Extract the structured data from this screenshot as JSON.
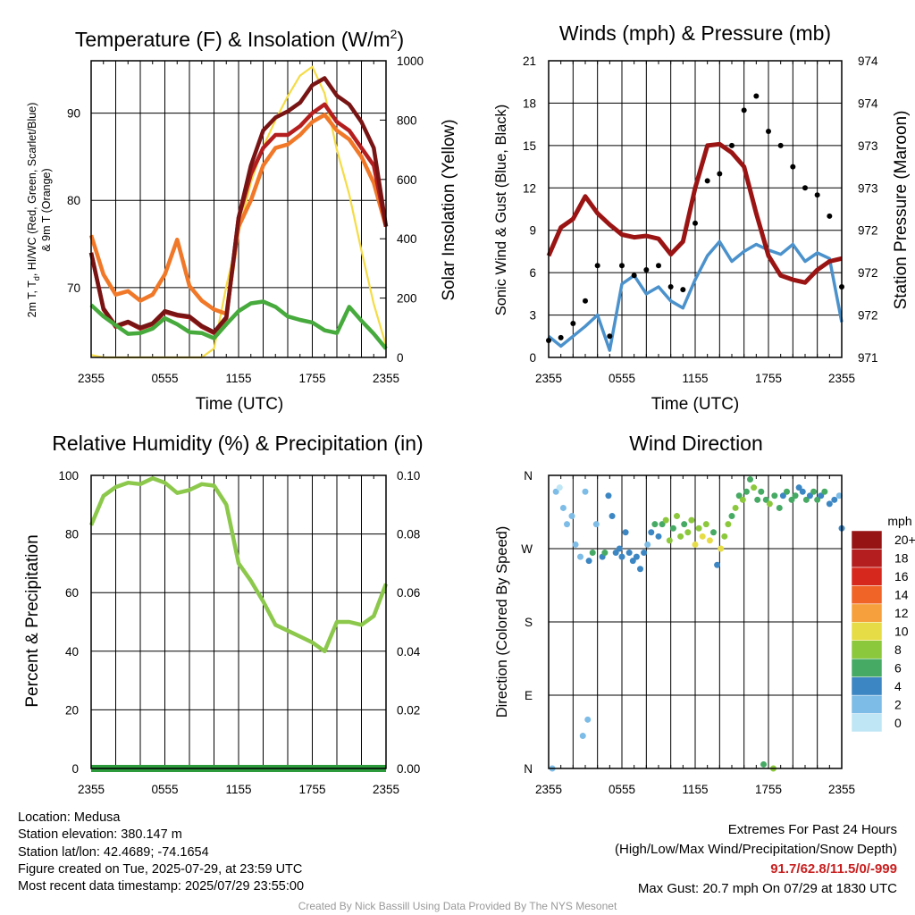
{
  "charts": {
    "temp": {
      "title": "Temperature (F) & Insolation (W/m",
      "title_sup": "2",
      "title_end": ")",
      "ylabel_left_l1": "2m T, T",
      "ylabel_left_sub": "d",
      "ylabel_left_l1b": ", HI/WC (Red, Green, Scarlet/Blue)",
      "ylabel_left_l2": "& 9m T (Orange)",
      "ylabel_right": "Solar Insolation (Yellow)",
      "xlabel": "Time (UTC)"
    },
    "wind": {
      "title": "Winds (mph) & Pressure (mb)",
      "ylabel_left": "Sonic Wind & Gust (Blue, Black)",
      "ylabel_right": "Station Pressure (Maroon)",
      "xlabel": "Time (UTC)"
    },
    "rh": {
      "title": "Relative Humidity (%) & Precipitation (in)",
      "ylabel_left": "Percent & Precipitation"
    },
    "dir": {
      "title": "Wind Direction",
      "ylabel_left": "Direction (Colored By Speed)",
      "legend_title": "mph"
    }
  },
  "footer": {
    "location": "Location: Medusa",
    "elevation": "Station elevation: 380.147 m",
    "latlon": "Station lat/lon: 42.4689; -74.1654",
    "created": "Figure created on Tue, 2025-07-29, at 23:59 UTC",
    "recent": "Most recent data timestamp: 2025/07/29 23:55:00",
    "extremes_title": "Extremes For Past 24 Hours",
    "extremes_sub": "(High/Low/Max Wind/Precipitation/Snow Depth)",
    "extremes_values": "91.7/62.8/11.5/0/-999",
    "max_gust": "Max Gust: 20.7 mph On 07/29 at 1830 UTC",
    "credit": "Created By Nick Bassill Using Data Provided By The NYS Mesonet"
  },
  "chart_data": [
    {
      "type": "line",
      "title": "Temperature (F) & Insolation (W/m2)",
      "xlabel": "Time (UTC)",
      "x_ticks": [
        "2355",
        "0555",
        "1155",
        "1755",
        "2355"
      ],
      "ylim": [
        62,
        96
      ],
      "y_ticks": [
        70,
        80,
        90
      ],
      "y2lim": [
        0,
        1000
      ],
      "y2_ticks": [
        0,
        200,
        400,
        600,
        800,
        1000
      ],
      "x": [
        0,
        1,
        2,
        3,
        4,
        5,
        6,
        7,
        8,
        9,
        10,
        11,
        12,
        13,
        14,
        15,
        16,
        17,
        18,
        19,
        20,
        21,
        22,
        23,
        24
      ],
      "series": [
        {
          "name": "2m T",
          "color": "#b41e1e",
          "axis": "left",
          "values": [
            74,
            67.5,
            65.5,
            66,
            65.3,
            65.8,
            67.2,
            66.8,
            66.6,
            65.5,
            64.8,
            66.5,
            78,
            83,
            86,
            87.5,
            87.5,
            88.5,
            90,
            91,
            89,
            88,
            86,
            84,
            77
          ]
        },
        {
          "name": "HI/WC",
          "color": "#781414",
          "axis": "left",
          "values": [
            74,
            67.6,
            65.6,
            66.1,
            65.4,
            65.9,
            67.3,
            66.9,
            66.7,
            65.6,
            64.9,
            66.6,
            78,
            84,
            88,
            89.5,
            90.2,
            91.2,
            93.2,
            94,
            92,
            91,
            89,
            86,
            77
          ]
        },
        {
          "name": "9m T",
          "color": "#f07828",
          "axis": "left",
          "values": [
            76,
            71.5,
            69.2,
            69.6,
            68.5,
            69.2,
            71.5,
            75.5,
            70.2,
            68.5,
            67.5,
            67,
            77,
            80,
            84,
            86,
            86.4,
            87.5,
            89,
            89.8,
            88,
            87,
            85,
            82,
            77
          ]
        },
        {
          "name": "Td",
          "color": "#46aa3c",
          "axis": "left",
          "values": [
            68,
            66.7,
            65.7,
            64.7,
            64.8,
            65.3,
            66.5,
            65.8,
            64.9,
            64.8,
            64.2,
            65.8,
            67.3,
            68.2,
            68.4,
            67.8,
            66.7,
            66.3,
            66,
            65.1,
            64.8,
            67.8,
            66.2,
            64.7,
            63
          ]
        },
        {
          "name": "Solar Insolation",
          "color": "#f5dc46",
          "axis": "right",
          "values": [
            8,
            0,
            0,
            0,
            0,
            0,
            0,
            0,
            0,
            0,
            30,
            240,
            420,
            590,
            710,
            800,
            880,
            950,
            980,
            890,
            700,
            550,
            360,
            180,
            40
          ]
        }
      ]
    },
    {
      "type": "line",
      "title": "Winds (mph) & Pressure (mb)",
      "xlabel": "Time (UTC)",
      "x_ticks": [
        "2355",
        "0555",
        "1155",
        "1755",
        "2355"
      ],
      "ylim": [
        0,
        21
      ],
      "y_ticks": [
        0,
        3,
        6,
        9,
        12,
        15,
        18,
        21
      ],
      "y2_ticks": [
        "971",
        "972",
        "972",
        "972",
        "973",
        "973",
        "974",
        "974"
      ],
      "x": [
        0,
        1,
        2,
        3,
        4,
        5,
        6,
        7,
        8,
        9,
        10,
        11,
        12,
        13,
        14,
        15,
        16,
        17,
        18,
        19,
        20,
        21,
        22,
        23,
        24
      ],
      "series": [
        {
          "name": "Sonic Wind",
          "color": "#4b92cc",
          "axis": "left",
          "values": [
            1.5,
            0.8,
            1.5,
            2.2,
            3,
            0.5,
            5.2,
            5.8,
            4.5,
            5,
            4,
            3.5,
            5.5,
            7.2,
            8.2,
            6.8,
            7.5,
            8,
            7.6,
            7.3,
            8,
            6.8,
            7.4,
            7,
            2.5
          ]
        },
        {
          "name": "Gust",
          "color": "#000000",
          "axis": "left",
          "values": [
            1.2,
            1.4,
            2.4,
            4,
            6.5,
            1.5,
            6.5,
            5.8,
            6.2,
            6.5,
            5,
            4.8,
            9.5,
            12.5,
            13,
            15,
            17.5,
            18.5,
            16,
            15,
            13.5,
            12,
            11.5,
            10,
            5
          ]
        },
        {
          "name": "Station Pressure",
          "color": "#9b1414",
          "axis": "left",
          "values": [
            7.2,
            9.2,
            9.8,
            11.4,
            10.2,
            9.4,
            8.7,
            8.5,
            8.6,
            8.4,
            7.3,
            8.2,
            12,
            15,
            15.1,
            14.5,
            13.5,
            10.2,
            7.2,
            5.8,
            5.5,
            5.3,
            6.2,
            6.8,
            7
          ]
        }
      ]
    },
    {
      "type": "line",
      "title": "Relative Humidity (%) & Precipitation (in)",
      "ylabel": "Percent & Precipitation",
      "x_ticks": [
        "2355",
        "0555",
        "1155",
        "1755",
        "2355"
      ],
      "ylim": [
        0,
        100
      ],
      "y_ticks": [
        0,
        20,
        40,
        60,
        80,
        100
      ],
      "y2lim": [
        0,
        0.1
      ],
      "y2_ticks": [
        "0.00",
        "0.02",
        "0.04",
        "0.06",
        "0.08",
        "0.10"
      ],
      "x": [
        0,
        1,
        2,
        3,
        4,
        5,
        6,
        7,
        8,
        9,
        10,
        11,
        12,
        13,
        14,
        15,
        16,
        17,
        18,
        19,
        20,
        21,
        22,
        23,
        24
      ],
      "series": [
        {
          "name": "Relative Humidity",
          "color": "#8cc84b",
          "axis": "left",
          "values": [
            83,
            93,
            96,
            97.5,
            97,
            99,
            97.5,
            94,
            95,
            97,
            96.5,
            90,
            70,
            64,
            57,
            49,
            47,
            45,
            43,
            40,
            50,
            50,
            49,
            52,
            63
          ]
        },
        {
          "name": "Precipitation",
          "color": "#2d9a3c",
          "axis": "right",
          "values": [
            0,
            0,
            0,
            0,
            0,
            0,
            0,
            0,
            0,
            0,
            0,
            0,
            0,
            0,
            0,
            0,
            0,
            0,
            0,
            0,
            0,
            0,
            0,
            0,
            0
          ]
        }
      ]
    },
    {
      "type": "scatter",
      "title": "Wind Direction",
      "ylabel": "Direction (Colored By Speed)",
      "x_ticks": [
        "2355",
        "0555",
        "1155",
        "1755",
        "2355"
      ],
      "y_ticks": [
        "N",
        "E",
        "S",
        "W",
        "N"
      ],
      "ylim": [
        0,
        360
      ],
      "legend": {
        "title": "mph",
        "labels": [
          "0",
          "2",
          "4",
          "6",
          "8",
          "10",
          "12",
          "14",
          "16",
          "18",
          "20+"
        ],
        "colors": [
          "#bfe6f5",
          "#7dbce6",
          "#3c87c3",
          "#46aa64",
          "#8cc83c",
          "#e6dc46",
          "#f5a03c",
          "#f06428",
          "#d7281e",
          "#b41e1e",
          "#961414"
        ]
      },
      "points": [
        {
          "x": 0.3,
          "dir": 0,
          "speed": 1
        },
        {
          "x": 0.6,
          "dir": 340,
          "speed": 1
        },
        {
          "x": 0.9,
          "dir": 345,
          "speed": 0.5
        },
        {
          "x": 1.2,
          "dir": 320,
          "speed": 1
        },
        {
          "x": 1.5,
          "dir": 300,
          "speed": 1.5
        },
        {
          "x": 1.9,
          "dir": 310,
          "speed": 1.2
        },
        {
          "x": 2.2,
          "dir": 275,
          "speed": 2
        },
        {
          "x": 2.6,
          "dir": 260,
          "speed": 2.5
        },
        {
          "x": 2.8,
          "dir": 40,
          "speed": 1
        },
        {
          "x": 3,
          "dir": 340,
          "speed": 1
        },
        {
          "x": 3.2,
          "dir": 60,
          "speed": 1
        },
        {
          "x": 3.3,
          "dir": 255,
          "speed": 3.5
        },
        {
          "x": 3.6,
          "dir": 265,
          "speed": 5
        },
        {
          "x": 3.9,
          "dir": 300,
          "speed": 2
        },
        {
          "x": 4.4,
          "dir": 260,
          "speed": 4
        },
        {
          "x": 4.6,
          "dir": 265,
          "speed": 5.5
        },
        {
          "x": 4.9,
          "dir": 335,
          "speed": 4
        },
        {
          "x": 5.2,
          "dir": 310,
          "speed": 4.2
        },
        {
          "x": 5.5,
          "dir": 265,
          "speed": 3.8
        },
        {
          "x": 5.8,
          "dir": 270,
          "speed": 4
        },
        {
          "x": 6,
          "dir": 260,
          "speed": 3
        },
        {
          "x": 6.3,
          "dir": 290,
          "speed": 4
        },
        {
          "x": 6.6,
          "dir": 265,
          "speed": 4.5
        },
        {
          "x": 6.9,
          "dir": 255,
          "speed": 4
        },
        {
          "x": 7.2,
          "dir": 260,
          "speed": 4.5
        },
        {
          "x": 7.5,
          "dir": 245,
          "speed": 3.5
        },
        {
          "x": 7.8,
          "dir": 265,
          "speed": 3
        },
        {
          "x": 8.1,
          "dir": 275,
          "speed": 2
        },
        {
          "x": 8.4,
          "dir": 290,
          "speed": 3
        },
        {
          "x": 8.7,
          "dir": 300,
          "speed": 5
        },
        {
          "x": 9,
          "dir": 285,
          "speed": 4
        },
        {
          "x": 9.3,
          "dir": 300,
          "speed": 6
        },
        {
          "x": 9.6,
          "dir": 305,
          "speed": 7
        },
        {
          "x": 9.9,
          "dir": 280,
          "speed": 8
        },
        {
          "x": 10.2,
          "dir": 295,
          "speed": 6.5
        },
        {
          "x": 10.5,
          "dir": 310,
          "speed": 7
        },
        {
          "x": 10.8,
          "dir": 285,
          "speed": 8.5
        },
        {
          "x": 11.1,
          "dir": 300,
          "speed": 6
        },
        {
          "x": 11.4,
          "dir": 290,
          "speed": 7.5
        },
        {
          "x": 11.7,
          "dir": 305,
          "speed": 8
        },
        {
          "x": 12,
          "dir": 275,
          "speed": 10
        },
        {
          "x": 12.3,
          "dir": 295,
          "speed": 7
        },
        {
          "x": 12.6,
          "dir": 285,
          "speed": 9
        },
        {
          "x": 12.9,
          "dir": 300,
          "speed": 8.5
        },
        {
          "x": 13.2,
          "dir": 280,
          "speed": 10.5
        },
        {
          "x": 13.5,
          "dir": 290,
          "speed": 6
        },
        {
          "x": 13.8,
          "dir": 250,
          "speed": 4
        },
        {
          "x": 14.1,
          "dir": 270,
          "speed": 9
        },
        {
          "x": 14.4,
          "dir": 285,
          "speed": 7
        },
        {
          "x": 14.7,
          "dir": 300,
          "speed": 8
        },
        {
          "x": 15,
          "dir": 310,
          "speed": 6.5
        },
        {
          "x": 15.3,
          "dir": 320,
          "speed": 7
        },
        {
          "x": 15.6,
          "dir": 335,
          "speed": 6
        },
        {
          "x": 15.9,
          "dir": 330,
          "speed": 7.5
        },
        {
          "x": 16.2,
          "dir": 340,
          "speed": 6.8
        },
        {
          "x": 16.5,
          "dir": 355,
          "speed": 6
        },
        {
          "x": 16.8,
          "dir": 345,
          "speed": 7.2
        },
        {
          "x": 17.1,
          "dir": 330,
          "speed": 5.5
        },
        {
          "x": 17.4,
          "dir": 340,
          "speed": 6.5
        },
        {
          "x": 17.6,
          "dir": 5,
          "speed": 6.5
        },
        {
          "x": 17.8,
          "dir": 330,
          "speed": 6
        },
        {
          "x": 18.1,
          "dir": 325,
          "speed": 7
        },
        {
          "x": 18.4,
          "dir": 0,
          "speed": 7
        },
        {
          "x": 18.5,
          "dir": 335,
          "speed": 5
        },
        {
          "x": 18.9,
          "dir": 320,
          "speed": 6
        },
        {
          "x": 19.2,
          "dir": 335,
          "speed": 4
        },
        {
          "x": 19.5,
          "dir": 340,
          "speed": 5.5
        },
        {
          "x": 19.9,
          "dir": 330,
          "speed": 6
        },
        {
          "x": 20.2,
          "dir": 335,
          "speed": 5
        },
        {
          "x": 20.5,
          "dir": 345,
          "speed": 4.5
        },
        {
          "x": 20.8,
          "dir": 340,
          "speed": 4
        },
        {
          "x": 21.1,
          "dir": 330,
          "speed": 5.5
        },
        {
          "x": 21.4,
          "dir": 335,
          "speed": 4.8
        },
        {
          "x": 21.7,
          "dir": 340,
          "speed": 5
        },
        {
          "x": 22,
          "dir": 330,
          "speed": 6
        },
        {
          "x": 22.3,
          "dir": 335,
          "speed": 4.5
        },
        {
          "x": 22.6,
          "dir": 340,
          "speed": 5
        },
        {
          "x": 23,
          "dir": 325,
          "speed": 4
        },
        {
          "x": 23.4,
          "dir": 330,
          "speed": 3
        },
        {
          "x": 23.8,
          "dir": 335,
          "speed": 2
        },
        {
          "x": 24,
          "dir": 295,
          "speed": 3
        }
      ]
    }
  ]
}
